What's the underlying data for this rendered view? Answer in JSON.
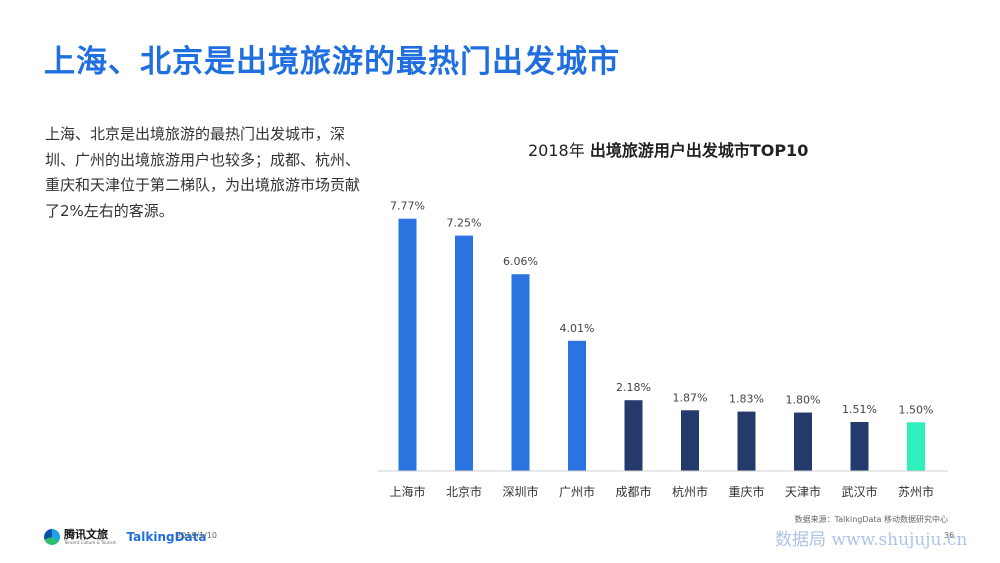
{
  "slide": {
    "title": "上海、北京是出境旅游的最热门出发城市",
    "body": "上海、北京是出境旅游的最热门出发城市，深圳、广州的出境旅游用户也较多；成都、杭州、重庆和天津位于第二梯队，为出境旅游市场贡献了2%左右的客源。"
  },
  "chart_title": {
    "part1": "2018年 ",
    "part2": "出境旅游用户出发城市TOP10"
  },
  "chart_data": {
    "type": "bar",
    "title": "2018年 出境旅游用户出发城市TOP10",
    "xlabel": "",
    "ylabel": "",
    "ylim": [
      0,
      8.5
    ],
    "grid": false,
    "categories": [
      "上海市",
      "北京市",
      "深圳市",
      "广州市",
      "成都市",
      "杭州市",
      "重庆市",
      "天津市",
      "武汉市",
      "苏州市"
    ],
    "values": [
      7.77,
      7.25,
      6.06,
      4.01,
      2.18,
      1.87,
      1.83,
      1.8,
      1.51,
      1.5
    ],
    "data_labels": [
      "7.77%",
      "7.25%",
      "6.06%",
      "4.01%",
      "2.18%",
      "1.87%",
      "1.83%",
      "1.80%",
      "1.51%",
      "1.50%"
    ],
    "bar_colors": [
      "#2a73e0",
      "#2a73e0",
      "#2a73e0",
      "#2a73e0",
      "#243a6b",
      "#243a6b",
      "#243a6b",
      "#243a6b",
      "#243a6b",
      "#2ff0bd"
    ]
  },
  "footer": {
    "brand1_name": "腾讯文旅",
    "brand1_sub": "Tencent Culture & Tourism",
    "brand2": "TalkingData",
    "date": "2019/1/10",
    "source": "数据来源：TalkingData 移动数据研究中心",
    "page": "36",
    "watermark": "数据局 www.shujuju.cn"
  },
  "colors": {
    "accent": "#1f6fe0",
    "tier1": "#2a73e0",
    "tier2": "#243a6b",
    "highlight": "#2ff0bd"
  }
}
